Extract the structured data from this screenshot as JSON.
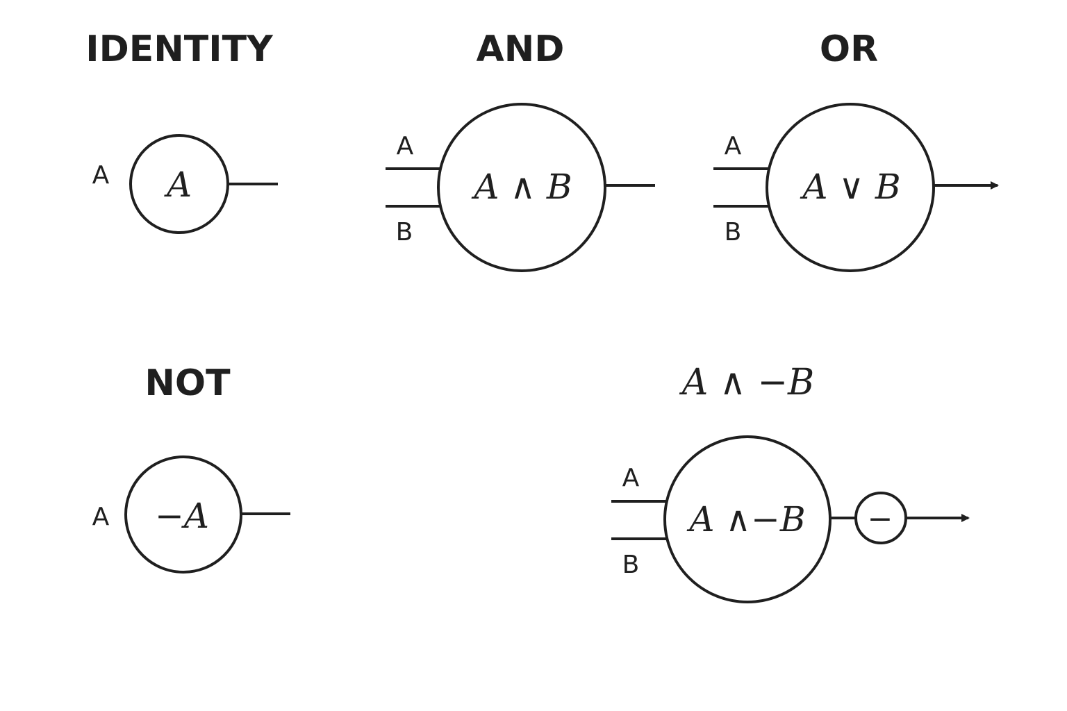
{
  "colors": {
    "ink": "#1f1f1f",
    "background": "#ffffff"
  },
  "identity": {
    "title": "IDENTITY",
    "input_a": "A",
    "expression": "A"
  },
  "and": {
    "title": "AND",
    "input_a": "A",
    "input_b": "B",
    "expression": "A ∧ B"
  },
  "or": {
    "title": "OR",
    "input_a": "A",
    "input_b": "B",
    "expression": "A ∨ B"
  },
  "not": {
    "title": "NOT",
    "input_a": "A",
    "expression": "−A"
  },
  "and_not": {
    "title": "A ∧ −B",
    "input_a": "A",
    "input_b": "B",
    "expression": "A ∧−B",
    "negation_symbol": "−"
  }
}
